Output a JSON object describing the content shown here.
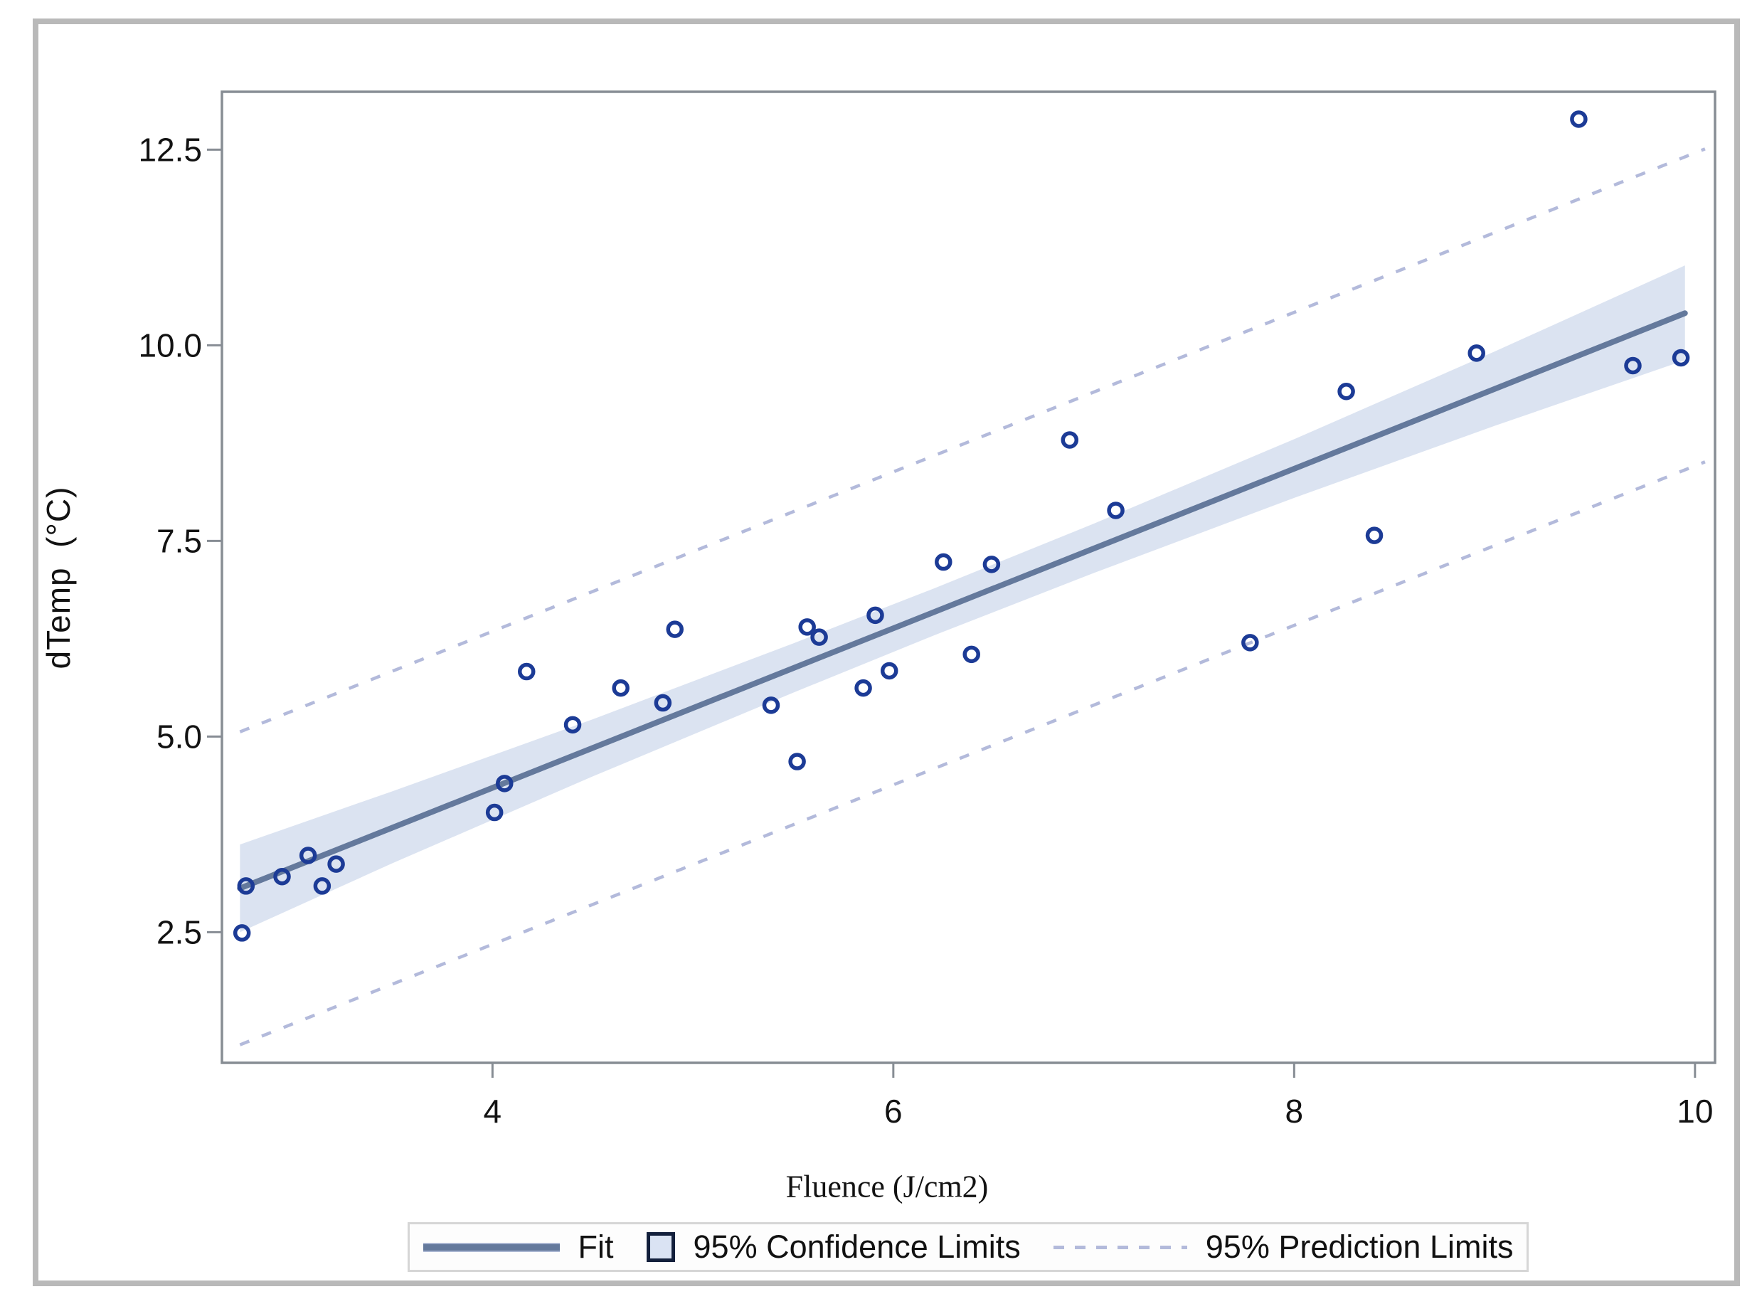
{
  "figure": {
    "background": "#ffffff",
    "outer_border_color": "#b9b9b9",
    "frame_color": "#878d94",
    "tick_label_color": "#121212"
  },
  "axis_labels": {
    "x": "Fluence (J/cm2)",
    "y": "dTemp  (°C)"
  },
  "legend": {
    "items": [
      {
        "label": "Fit",
        "swatch": "line-swatch"
      },
      {
        "label": "95% Confidence Limits",
        "swatch": "box-swatch"
      },
      {
        "label": "95% Prediction Limits",
        "swatch": "dashed-swatch"
      }
    ]
  },
  "chart_data": {
    "type": "scatter",
    "title": "",
    "xlabel": "Fluence (J/cm2)",
    "ylabel": "dTemp (°C)",
    "xlim": [
      2.65,
      10.1
    ],
    "ylim": [
      0.83,
      13.24
    ],
    "grid": false,
    "legend_position": "bottom",
    "x_ticks": {
      "values": [
        4,
        6,
        8,
        10
      ],
      "labels": [
        "4",
        "6",
        "8",
        "10"
      ]
    },
    "y_ticks": {
      "values": [
        2.5,
        5.0,
        7.5,
        10.0,
        12.5
      ],
      "labels": [
        "2.5",
        "5.0",
        "7.5",
        "10.0",
        "12.5"
      ]
    },
    "points": [
      [
        2.75,
        2.49
      ],
      [
        2.77,
        3.09
      ],
      [
        2.95,
        3.21
      ],
      [
        3.08,
        3.48
      ],
      [
        3.15,
        3.09
      ],
      [
        3.22,
        3.37
      ],
      [
        4.01,
        4.03
      ],
      [
        4.06,
        4.4
      ],
      [
        4.17,
        5.83
      ],
      [
        4.4,
        5.15
      ],
      [
        4.64,
        5.62
      ],
      [
        4.85,
        5.43
      ],
      [
        4.91,
        6.37
      ],
      [
        5.39,
        5.4
      ],
      [
        5.52,
        4.68
      ],
      [
        5.57,
        6.4
      ],
      [
        5.63,
        6.27
      ],
      [
        5.85,
        5.62
      ],
      [
        5.91,
        6.55
      ],
      [
        5.98,
        5.84
      ],
      [
        6.25,
        7.23
      ],
      [
        6.39,
        6.05
      ],
      [
        6.49,
        7.2
      ],
      [
        6.88,
        8.79
      ],
      [
        7.11,
        7.89
      ],
      [
        7.78,
        6.2
      ],
      [
        8.26,
        9.41
      ],
      [
        8.4,
        7.57
      ],
      [
        8.91,
        9.9
      ],
      [
        9.42,
        12.89
      ],
      [
        9.69,
        9.74
      ],
      [
        9.93,
        9.84
      ]
    ],
    "fit_line": {
      "x": [
        2.74,
        9.95
      ],
      "y": [
        3.06,
        10.41
      ]
    },
    "confidence_band": {
      "x": [
        2.74,
        3.5,
        4.5,
        5.5,
        6.2,
        7.0,
        8.0,
        9.0,
        9.95
      ],
      "upper": [
        3.62,
        4.3,
        5.22,
        6.19,
        6.89,
        7.72,
        8.8,
        9.92,
        11.02
      ],
      "lower": [
        2.5,
        3.38,
        4.49,
        5.56,
        6.29,
        7.09,
        8.05,
        8.97,
        9.81
      ]
    },
    "prediction_upper": {
      "x": [
        2.74,
        10.05
      ],
      "y": [
        5.06,
        12.51
      ]
    },
    "prediction_lower": {
      "x": [
        2.74,
        10.05
      ],
      "y": [
        1.06,
        8.51
      ]
    },
    "colors": {
      "point": "#1c3b96",
      "fit_line": "#64799c",
      "confidence_band": "#dbe3f1",
      "prediction_line": "#b3badb"
    }
  }
}
